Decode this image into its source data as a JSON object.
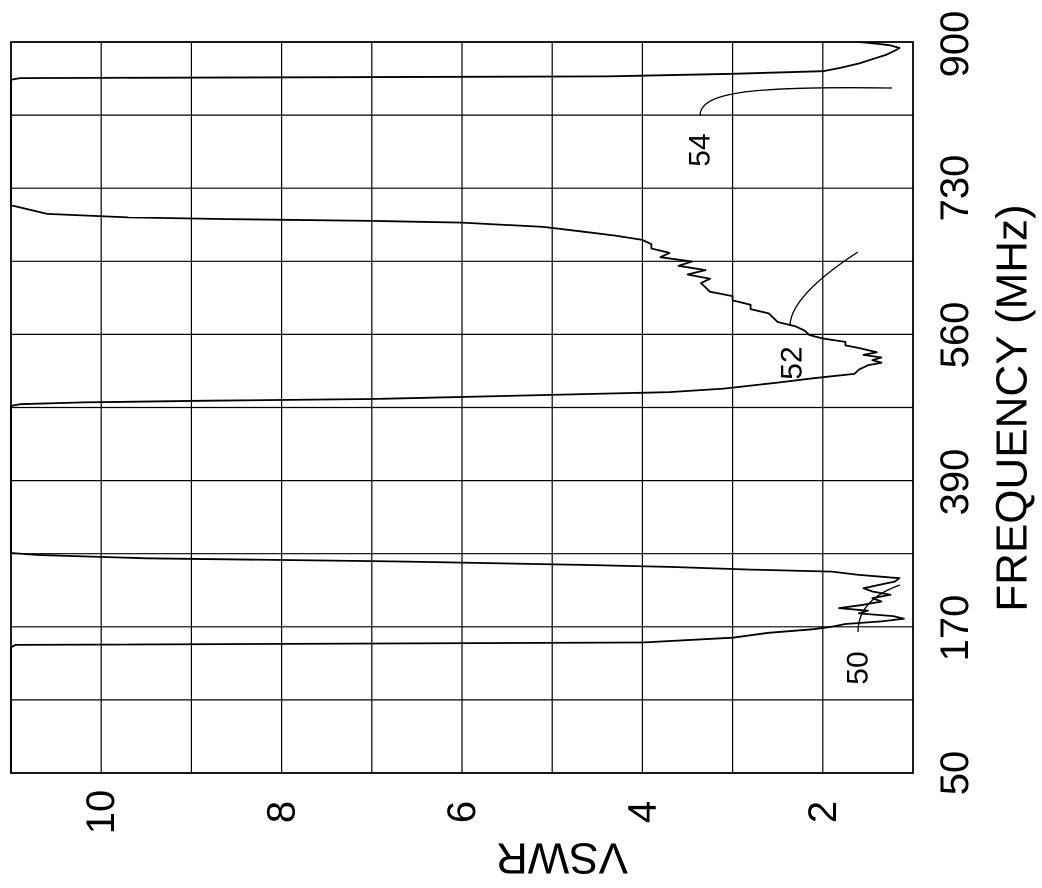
{
  "chart_data": {
    "type": "line",
    "orientation": "rotated-90-clockwise",
    "title": "",
    "xlabel": "FREQUENCY (MHz)",
    "ylabel": "VSWR",
    "x_tick_labels": [
      "50",
      "170",
      "390",
      "560",
      "730",
      "900"
    ],
    "y_tick_labels": [
      "2",
      "4",
      "6",
      "8",
      "10"
    ],
    "x_ticks": [
      50,
      170,
      390,
      560,
      730,
      900
    ],
    "y_ticks": [
      2,
      4,
      6,
      8,
      10
    ],
    "ylim": [
      1,
      11
    ],
    "grid": true,
    "series": [
      {
        "points": [
          [
            50,
            11
          ],
          [
            150,
            11
          ],
          [
            154,
            11
          ],
          [
            156,
            10.95
          ],
          [
            158,
            4.0
          ],
          [
            162,
            3.0
          ],
          [
            166,
            2.6
          ],
          [
            169,
            2.1
          ],
          [
            172,
            1.9
          ],
          [
            176,
            1.75
          ],
          [
            180,
            1.35
          ],
          [
            184,
            1.1
          ],
          [
            188,
            1.22
          ],
          [
            192,
            1.6
          ],
          [
            196,
            1.5
          ],
          [
            200,
            1.82
          ],
          [
            205,
            1.55
          ],
          [
            210,
            1.35
          ],
          [
            215,
            1.45
          ],
          [
            220,
            1.25
          ],
          [
            225,
            1.45
          ],
          [
            230,
            1.55
          ],
          [
            240,
            1.2
          ],
          [
            245,
            1.15
          ],
          [
            250,
            1.6
          ],
          [
            255,
            1.9
          ],
          [
            258,
            2.8
          ],
          [
            262,
            3.7
          ],
          [
            265,
            4.6
          ],
          [
            270,
            6.6
          ],
          [
            275,
            9.5
          ],
          [
            280,
            10.7
          ],
          [
            283,
            11
          ],
          [
            300,
            11
          ],
          [
            340,
            11
          ],
          [
            390,
            11
          ],
          [
            440,
            11
          ],
          [
            478,
            11
          ],
          [
            480,
            10.9
          ],
          [
            482,
            10.2
          ],
          [
            484,
            8.8
          ],
          [
            486,
            7.0
          ],
          [
            490,
            5.3
          ],
          [
            494,
            3.7
          ],
          [
            498,
            3.1
          ],
          [
            505,
            2.5
          ],
          [
            510,
            2.1
          ],
          [
            515,
            1.65
          ],
          [
            520,
            1.6
          ],
          [
            525,
            1.5
          ],
          [
            528,
            1.35
          ],
          [
            531,
            1.45
          ],
          [
            534,
            1.35
          ],
          [
            537,
            1.55
          ],
          [
            540,
            1.4
          ],
          [
            545,
            1.6
          ],
          [
            548,
            1.75
          ],
          [
            552,
            1.75
          ],
          [
            556,
            2.0
          ],
          [
            560,
            2.15
          ],
          [
            565,
            2.2
          ],
          [
            570,
            2.3
          ],
          [
            575,
            2.5
          ],
          [
            580,
            2.55
          ],
          [
            585,
            2.6
          ],
          [
            590,
            2.8
          ],
          [
            595,
            2.8
          ],
          [
            600,
            3.0
          ],
          [
            605,
            3.0
          ],
          [
            610,
            3.25
          ],
          [
            615,
            3.3
          ],
          [
            620,
            3.35
          ],
          [
            625,
            3.25
          ],
          [
            630,
            3.5
          ],
          [
            635,
            3.3
          ],
          [
            640,
            3.6
          ],
          [
            645,
            3.45
          ],
          [
            650,
            3.8
          ],
          [
            655,
            3.7
          ],
          [
            660,
            3.9
          ],
          [
            665,
            3.9
          ],
          [
            670,
            4.0
          ],
          [
            675,
            4.3
          ],
          [
            680,
            4.7
          ],
          [
            685,
            5.1
          ],
          [
            690,
            6.0
          ],
          [
            692,
            7.0
          ],
          [
            694,
            8.6
          ],
          [
            696,
            9.7
          ],
          [
            700,
            10.6
          ],
          [
            710,
            11
          ],
          [
            760,
            11
          ],
          [
            800,
            11
          ],
          [
            850,
            11
          ],
          [
            856,
            11
          ],
          [
            858,
            10.9
          ],
          [
            860,
            4.4
          ],
          [
            863,
            3.0
          ],
          [
            866,
            2.0
          ],
          [
            870,
            1.8
          ],
          [
            875,
            1.6
          ],
          [
            880,
            1.45
          ],
          [
            885,
            1.3
          ],
          [
            890,
            1.2
          ],
          [
            893,
            1.15
          ],
          [
            896,
            1.25
          ],
          [
            898,
            1.4
          ],
          [
            900,
            1.6
          ]
        ]
      }
    ],
    "annotations": [
      {
        "text": "50",
        "target": [
          190,
          1.3
        ]
      },
      {
        "text": "52",
        "target": [
          540,
          1.6
        ]
      },
      {
        "text": "54",
        "target": [
          880,
          1.3
        ]
      }
    ]
  }
}
